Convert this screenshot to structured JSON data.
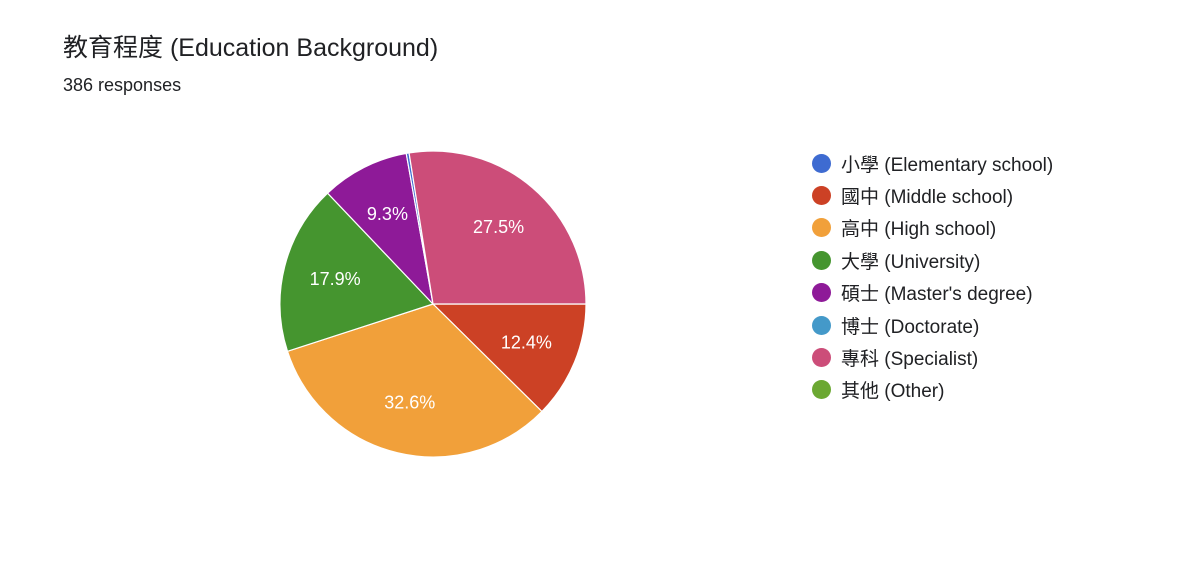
{
  "header": {
    "title": "教育程度 (Education Background)",
    "subtitle": "386 responses"
  },
  "chart_data": {
    "type": "pie",
    "title": "教育程度 (Education Background)",
    "subtitle": "386 responses",
    "start_angle_deg": 0,
    "direction": "clockwise",
    "legend_position": "right",
    "slices": [
      {
        "label": "國中 (Middle school)",
        "value": 12.4,
        "color": "#CC4125",
        "show_label": "12.4%"
      },
      {
        "label": "高中 (High school)",
        "value": 32.6,
        "color": "#F1A03A",
        "show_label": "32.6%"
      },
      {
        "label": "大學 (University)",
        "value": 17.9,
        "color": "#45952F",
        "show_label": "17.9%"
      },
      {
        "label": "碩士 (Master's degree)",
        "value": 9.3,
        "color": "#8E1A98",
        "show_label": "9.3%"
      },
      {
        "label": "小學 (Elementary school)",
        "value": 0.3,
        "color": "#3E6BD1",
        "show_label": ""
      },
      {
        "label": "專科 (Specialist)",
        "value": 27.5,
        "color": "#CC4D79",
        "show_label": "27.5%"
      }
    ],
    "legend": [
      {
        "label": "小學 (Elementary school)",
        "color": "#3E6BD1"
      },
      {
        "label": "國中 (Middle school)",
        "color": "#CC4125"
      },
      {
        "label": "高中 (High school)",
        "color": "#F1A03A"
      },
      {
        "label": "大學 (University)",
        "color": "#45952F"
      },
      {
        "label": "碩士 (Master's degree)",
        "color": "#8E1A98"
      },
      {
        "label": "博士 (Doctorate)",
        "color": "#4499C9"
      },
      {
        "label": "專科 (Specialist)",
        "color": "#CC4D79"
      },
      {
        "label": "其他 (Other)",
        "color": "#6BA832"
      }
    ]
  }
}
